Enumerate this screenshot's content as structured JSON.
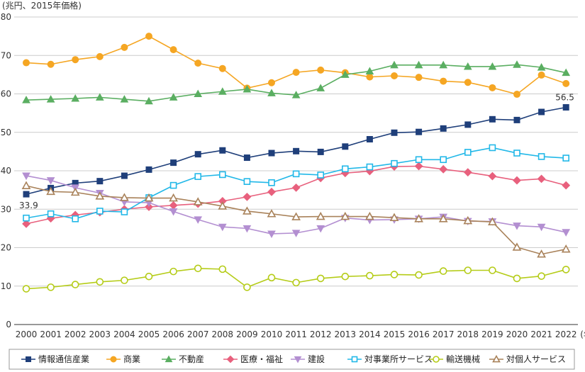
{
  "chart_data": {
    "type": "line",
    "unit_label": "(兆円、2015年価格)",
    "x": [
      "2000",
      "2001",
      "2002",
      "2003",
      "2004",
      "2005",
      "2006",
      "2007",
      "2008",
      "2009",
      "2010",
      "2011",
      "2012",
      "2013",
      "2014",
      "2015",
      "2016",
      "2017",
      "2018",
      "2019",
      "2020",
      "2021",
      "2022"
    ],
    "x_suffix": "(年)",
    "ylim": [
      0,
      80
    ],
    "yticks": [
      0,
      10,
      20,
      30,
      40,
      50,
      60,
      70,
      80
    ],
    "grid": "horizontal",
    "legend_position": "bottom",
    "annotations": [
      {
        "series": "情報通信産業",
        "x": "2000",
        "text": "33.9"
      },
      {
        "series": "情報通信産業",
        "x": "2022",
        "text": "56.5"
      }
    ],
    "series": [
      {
        "name": "情報通信産業",
        "color": "#1f3f7a",
        "marker": "square-filled",
        "values": [
          33.9,
          35.5,
          36.8,
          37.3,
          38.7,
          40.3,
          42.1,
          44.3,
          45.3,
          43.4,
          44.6,
          45.1,
          44.9,
          46.3,
          48.2,
          49.9,
          50.1,
          51.0,
          52.0,
          53.4,
          53.2,
          55.3,
          56.5
        ]
      },
      {
        "name": "商業",
        "color": "#f5a623",
        "marker": "circle-filled",
        "values": [
          68.1,
          67.7,
          68.9,
          69.7,
          72.1,
          75.0,
          71.5,
          68.0,
          66.6,
          61.5,
          62.9,
          65.6,
          66.2,
          65.5,
          64.4,
          64.7,
          64.3,
          63.3,
          63.0,
          61.6,
          59.9,
          64.9,
          62.7
        ]
      },
      {
        "name": "不動産",
        "color": "#5aae61",
        "marker": "triangle-up-filled",
        "values": [
          58.4,
          58.6,
          58.8,
          59.1,
          58.6,
          58.1,
          59.1,
          60.0,
          60.6,
          61.2,
          60.2,
          59.7,
          61.5,
          65.0,
          65.9,
          67.5,
          67.5,
          67.5,
          67.1,
          67.1,
          67.6,
          66.9,
          65.5
        ]
      },
      {
        "name": "医療・福祉",
        "color": "#e8607d",
        "marker": "diamond-filled",
        "values": [
          26.2,
          27.6,
          28.5,
          29.2,
          30.0,
          30.6,
          31.0,
          31.4,
          32.1,
          33.2,
          34.5,
          35.6,
          38.1,
          39.4,
          39.9,
          41.1,
          41.2,
          40.4,
          39.6,
          38.6,
          37.5,
          37.9,
          36.2
        ]
      },
      {
        "name": "建設",
        "color": "#b38fd1",
        "marker": "triangle-down-filled",
        "values": [
          38.7,
          37.5,
          35.6,
          34.2,
          31.9,
          31.7,
          29.4,
          27.3,
          25.4,
          25.0,
          23.6,
          23.8,
          25.0,
          27.7,
          27.2,
          27.3,
          27.5,
          28.0,
          26.9,
          26.8,
          25.7,
          25.4,
          24.0
        ]
      },
      {
        "name": "対事業所サービス",
        "color": "#22b8e8",
        "marker": "square-open",
        "values": [
          27.7,
          28.8,
          27.5,
          29.5,
          29.3,
          33.0,
          36.2,
          38.5,
          39.0,
          37.2,
          36.9,
          39.2,
          38.9,
          40.5,
          41.0,
          41.9,
          42.9,
          42.9,
          44.8,
          46.0,
          44.6,
          43.7,
          43.3
        ]
      },
      {
        "name": "輸送機械",
        "color": "#b5cc18",
        "marker": "circle-open",
        "values": [
          9.3,
          9.7,
          10.4,
          11.1,
          11.5,
          12.5,
          13.8,
          14.6,
          14.4,
          9.7,
          12.2,
          10.9,
          12.0,
          12.5,
          12.7,
          13.0,
          12.9,
          13.9,
          14.1,
          14.1,
          12.0,
          12.6,
          14.3
        ]
      },
      {
        "name": "対個人サービス",
        "color": "#a9825a",
        "marker": "triangle-up-open",
        "values": [
          36.1,
          34.6,
          34.4,
          33.4,
          33.0,
          32.9,
          32.9,
          31.9,
          30.8,
          29.5,
          28.8,
          28.0,
          28.1,
          28.1,
          28.1,
          27.8,
          27.5,
          27.5,
          27.0,
          26.7,
          20.1,
          18.3,
          19.6
        ]
      }
    ]
  }
}
